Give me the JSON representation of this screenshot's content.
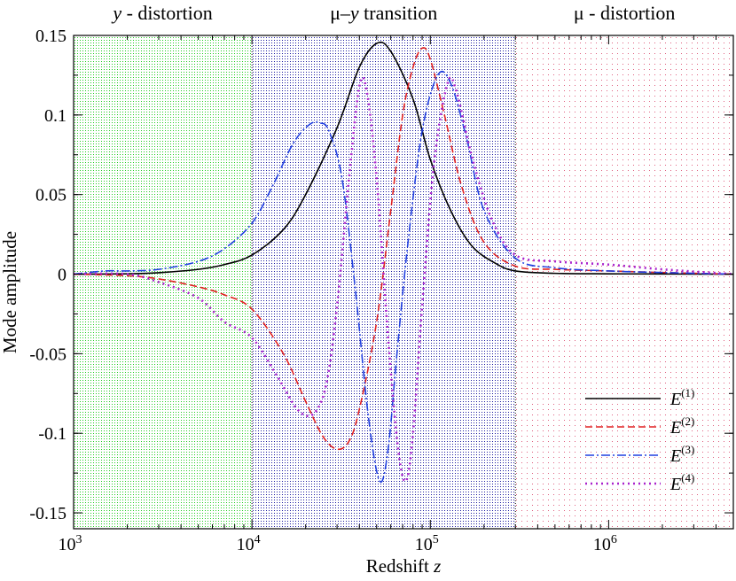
{
  "chart_data": {
    "type": "line",
    "xlabel": "Redshift z",
    "ylabel": "Mode amplitude",
    "xscale": "log",
    "xlim": [
      1000,
      5000000
    ],
    "ylim": [
      -0.16,
      0.15
    ],
    "xticks": [
      {
        "value": 1000,
        "base": "10",
        "exp": "3"
      },
      {
        "value": 10000,
        "base": "10",
        "exp": "4"
      },
      {
        "value": 100000,
        "base": "10",
        "exp": "5"
      },
      {
        "value": 1000000,
        "base": "10",
        "exp": "6"
      }
    ],
    "yticks": [
      {
        "value": 0.15,
        "label": "0.15"
      },
      {
        "value": 0.1,
        "label": "0.1"
      },
      {
        "value": 0.05,
        "label": "0.05"
      },
      {
        "value": 0,
        "label": "0"
      },
      {
        "value": -0.05,
        "label": "-0.05"
      },
      {
        "value": -0.1,
        "label": "-0.1"
      },
      {
        "value": -0.15,
        "label": "-0.15"
      }
    ],
    "regions": [
      {
        "label_italic": "y",
        "label_rest": " - distortion",
        "from": 1000,
        "to": 10000,
        "color": "#22cc22"
      },
      {
        "label_pre": "μ–",
        "label_italic": "y",
        "label_rest": " transition",
        "from": 10000,
        "to": 300000,
        "color": "#1a1aa0"
      },
      {
        "label_pre": "μ - distortion",
        "from": 300000,
        "to": 5000000,
        "color": "#e06080"
      }
    ],
    "series": [
      {
        "name": "E(1)",
        "name_base": "E",
        "name_sup": "(1)",
        "color": "#000000",
        "dash": "",
        "width": 1.6,
        "points": [
          [
            1000,
            0
          ],
          [
            2000,
            0.0002
          ],
          [
            3000,
            0.0009
          ],
          [
            5000,
            0.003
          ],
          [
            7000,
            0.006
          ],
          [
            10000,
            0.012
          ],
          [
            15000,
            0.028
          ],
          [
            20000,
            0.05
          ],
          [
            30000,
            0.092
          ],
          [
            40000,
            0.13
          ],
          [
            50000,
            0.145
          ],
          [
            60000,
            0.14
          ],
          [
            80000,
            0.11
          ],
          [
            100000,
            0.072
          ],
          [
            130000,
            0.04
          ],
          [
            170000,
            0.018
          ],
          [
            230000,
            0.007
          ],
          [
            300000,
            0.002
          ],
          [
            500000,
            0.0005
          ],
          [
            1000000,
            0.0002
          ],
          [
            2000000,
            0.0001
          ],
          [
            5000000,
            0
          ]
        ]
      },
      {
        "name": "E(2)",
        "name_base": "E",
        "name_sup": "(2)",
        "color": "#e02020",
        "dash": "8,4",
        "width": 1.6,
        "points": [
          [
            1000,
            0
          ],
          [
            2000,
            -0.001
          ],
          [
            3000,
            -0.003
          ],
          [
            5000,
            -0.008
          ],
          [
            7000,
            -0.013
          ],
          [
            10000,
            -0.022
          ],
          [
            15000,
            -0.05
          ],
          [
            20000,
            -0.08
          ],
          [
            25000,
            -0.102
          ],
          [
            30000,
            -0.11
          ],
          [
            35000,
            -0.105
          ],
          [
            40000,
            -0.085
          ],
          [
            50000,
            -0.03
          ],
          [
            60000,
            0.04
          ],
          [
            70000,
            0.1
          ],
          [
            80000,
            0.13
          ],
          [
            90000,
            0.142
          ],
          [
            100000,
            0.135
          ],
          [
            120000,
            0.1
          ],
          [
            150000,
            0.055
          ],
          [
            200000,
            0.02
          ],
          [
            300000,
            0.005
          ],
          [
            500000,
            0.003
          ],
          [
            1000000,
            0.002
          ],
          [
            2000000,
            0.001
          ],
          [
            5000000,
            0
          ]
        ]
      },
      {
        "name": "E(3)",
        "name_base": "E",
        "name_sup": "(3)",
        "color": "#2040e0",
        "dash": "10,3,2,3",
        "width": 1.6,
        "points": [
          [
            1000,
            0
          ],
          [
            1500,
            0.002
          ],
          [
            2000,
            0.002
          ],
          [
            3000,
            0.003
          ],
          [
            5000,
            0.008
          ],
          [
            7000,
            0.016
          ],
          [
            10000,
            0.032
          ],
          [
            13000,
            0.055
          ],
          [
            17000,
            0.082
          ],
          [
            21000,
            0.094
          ],
          [
            24000,
            0.095
          ],
          [
            27000,
            0.09
          ],
          [
            32000,
            0.06
          ],
          [
            38000,
            -0.01
          ],
          [
            45000,
            -0.09
          ],
          [
            52000,
            -0.13
          ],
          [
            58000,
            -0.11
          ],
          [
            65000,
            -0.05
          ],
          [
            75000,
            0.02
          ],
          [
            90000,
            0.09
          ],
          [
            110000,
            0.125
          ],
          [
            130000,
            0.12
          ],
          [
            160000,
            0.085
          ],
          [
            200000,
            0.04
          ],
          [
            300000,
            0.01
          ],
          [
            500000,
            0.004
          ],
          [
            1000000,
            0.002
          ],
          [
            2000000,
            0.001
          ],
          [
            5000000,
            0
          ]
        ]
      },
      {
        "name": "E(4)",
        "name_base": "E",
        "name_sup": "(4)",
        "color": "#aa22cc",
        "dash": "2,4",
        "width": 2.6,
        "points": [
          [
            1000,
            0
          ],
          [
            2000,
            0
          ],
          [
            3000,
            -0.005
          ],
          [
            5000,
            -0.015
          ],
          [
            7000,
            -0.03
          ],
          [
            10000,
            -0.04
          ],
          [
            14000,
            -0.065
          ],
          [
            18000,
            -0.085
          ],
          [
            22000,
            -0.088
          ],
          [
            26000,
            -0.07
          ],
          [
            30000,
            -0.02
          ],
          [
            35000,
            0.06
          ],
          [
            40000,
            0.118
          ],
          [
            44000,
            0.115
          ],
          [
            50000,
            0.06
          ],
          [
            58000,
            -0.04
          ],
          [
            66000,
            -0.11
          ],
          [
            73000,
            -0.13
          ],
          [
            80000,
            -0.1
          ],
          [
            90000,
            -0.02
          ],
          [
            105000,
            0.07
          ],
          [
            125000,
            0.12
          ],
          [
            140000,
            0.115
          ],
          [
            170000,
            0.075
          ],
          [
            220000,
            0.035
          ],
          [
            300000,
            0.012
          ],
          [
            500000,
            0.008
          ],
          [
            1000000,
            0.006
          ],
          [
            2000000,
            0.003
          ],
          [
            5000000,
            0
          ]
        ]
      }
    ]
  }
}
